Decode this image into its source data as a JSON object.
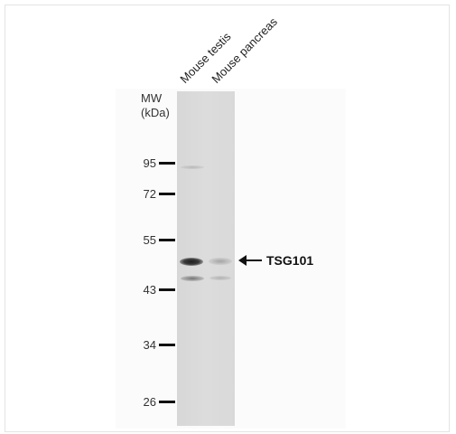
{
  "lanes": [
    {
      "label": "Mouse testis"
    },
    {
      "label": "Mouse pancreas"
    }
  ],
  "mw": {
    "title_line1": "MW",
    "title_line2": "(kDa)",
    "markers": [
      {
        "value": "95"
      },
      {
        "value": "72"
      },
      {
        "value": "55"
      },
      {
        "value": "43"
      },
      {
        "value": "34"
      },
      {
        "value": "26"
      }
    ]
  },
  "target": {
    "label": "TSG101",
    "arrow_icon": "left-arrow-icon"
  },
  "colors": {
    "membrane": "#d9d9d9",
    "band": "#2a2a2a",
    "text": "#333333"
  }
}
